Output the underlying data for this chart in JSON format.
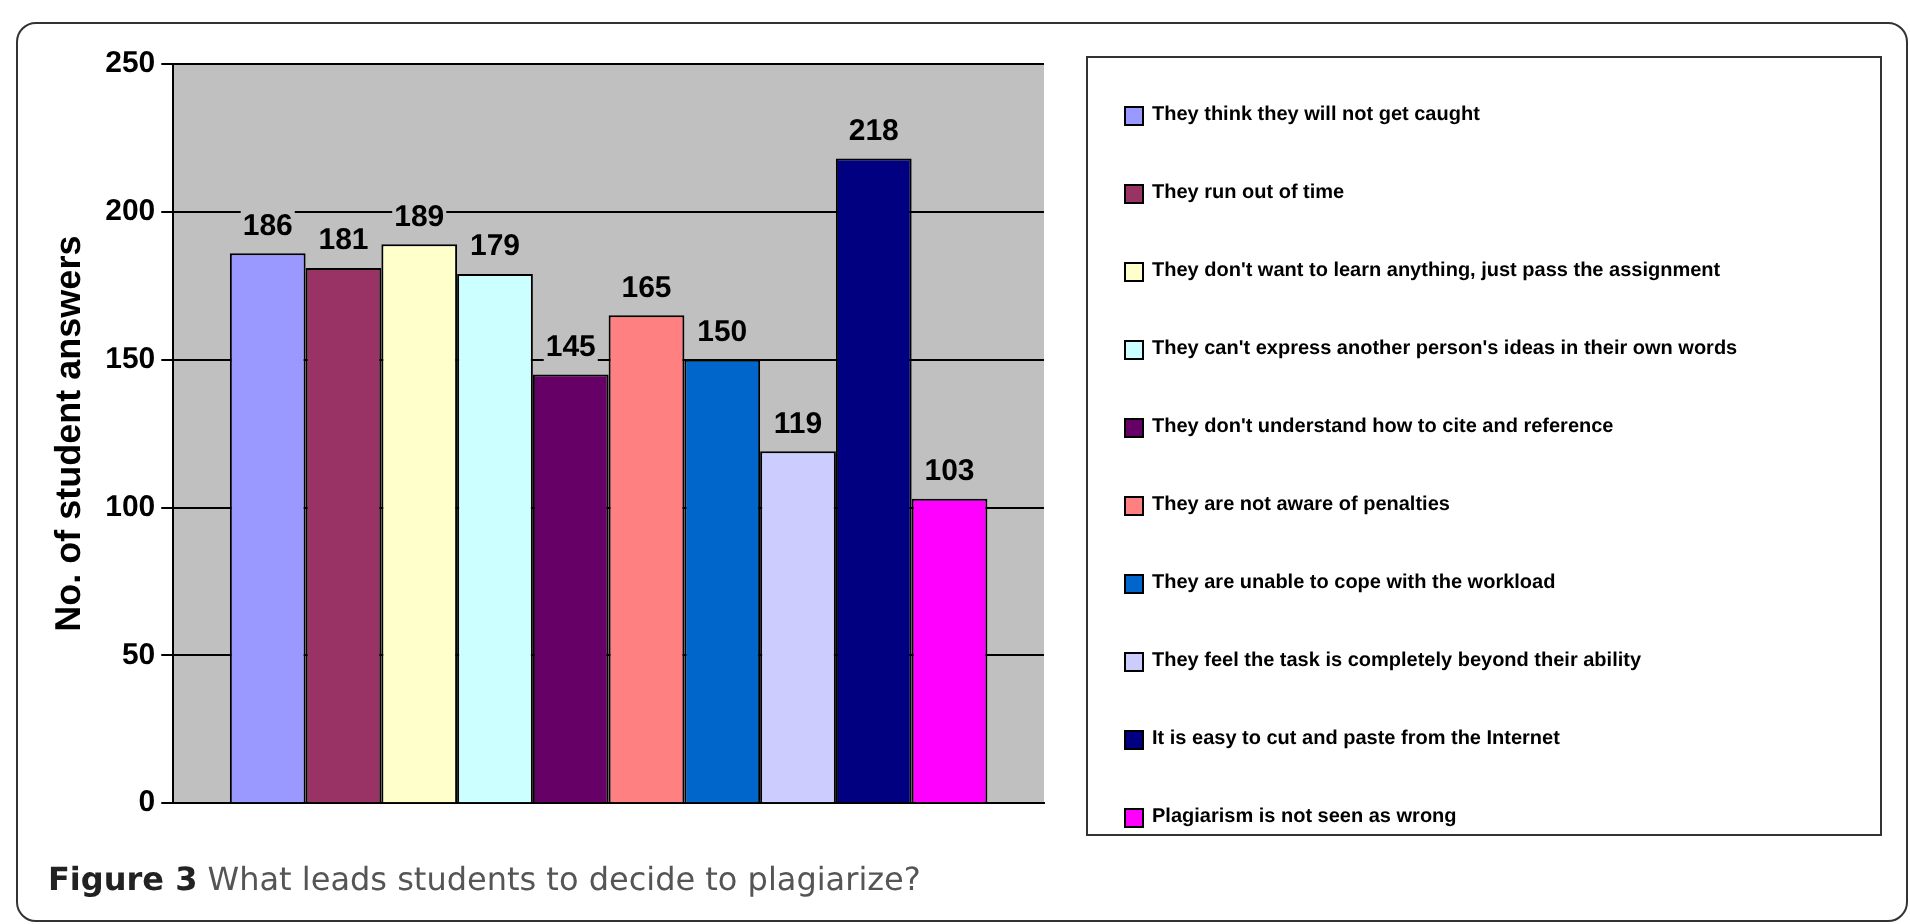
{
  "chart_data": {
    "type": "bar",
    "title": "Figure 3 What leads students to decide to plagiarize?",
    "ylabel": "No. of student answers",
    "categories": [
      null
    ],
    "series": [
      {
        "name": "They think they will not get caught",
        "color": "#9999ff",
        "values": [
          186
        ]
      },
      {
        "name": "They run out of time",
        "color": "#993366",
        "values": [
          181
        ]
      },
      {
        "name": "They don't want to learn anything, just pass the assignment",
        "color": "#ffffcc",
        "values": [
          189
        ]
      },
      {
        "name": "They can't express another person's ideas in their own words",
        "color": "#ccffff",
        "values": [
          179
        ]
      },
      {
        "name": "They don't understand how to cite and reference",
        "color": "#660066",
        "values": [
          145
        ]
      },
      {
        "name": "They are not aware of penalties",
        "color": "#ff8080",
        "values": [
          165
        ]
      },
      {
        "name": "They are unable to cope with the workload",
        "color": "#0066cc",
        "values": [
          150
        ]
      },
      {
        "name": "They feel the task is completely beyond their ability",
        "color": "#ccccff",
        "values": [
          119
        ]
      },
      {
        "name": "It is easy to cut and paste from the Internet",
        "color": "#000080",
        "values": [
          218
        ]
      },
      {
        "name": "Plagiarism is not seen as wrong",
        "color": "#ff00ff",
        "values": [
          103
        ]
      }
    ],
    "ylim": [
      0,
      250
    ],
    "yticks": [
      0,
      50,
      100,
      150,
      200,
      250
    ],
    "grid": "y",
    "legend": "right",
    "data_labels": true
  }
}
